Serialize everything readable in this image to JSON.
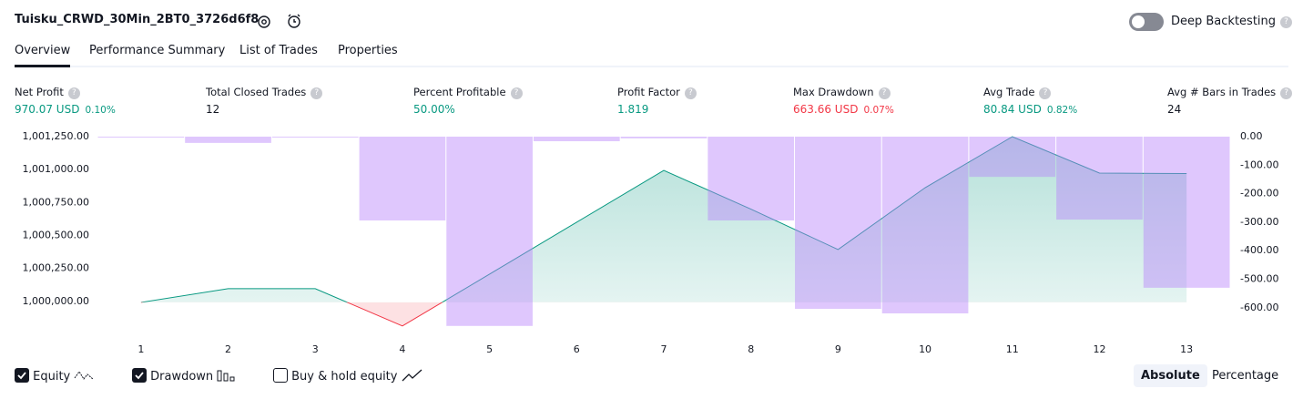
{
  "header": {
    "title": "Tuisku_CRWD_30Min_2BT0_3726d6f8",
    "deep_backtesting": "Deep Backtesting"
  },
  "tabs": [
    "Overview",
    "Performance Summary",
    "List of Trades",
    "Properties"
  ],
  "stats": [
    {
      "label": "Net Profit",
      "value": "970.07 USD",
      "percent": "0.10%",
      "color": "#089981"
    },
    {
      "label": "Total Closed Trades",
      "value": "12",
      "color": "#131722"
    },
    {
      "label": "Percent Profitable",
      "value": "50.00%",
      "color": "#089981"
    },
    {
      "label": "Profit Factor",
      "value": "1.819",
      "color": "#089981"
    },
    {
      "label": "Max Drawdown",
      "value": "663.66 USD",
      "percent": "0.07%",
      "color": "#f23645"
    },
    {
      "label": "Avg Trade",
      "value": "80.84 USD",
      "percent": "0.82%",
      "color": "#089981"
    },
    {
      "label": "Avg # Bars in Trades",
      "value": "24",
      "color": "#131722"
    }
  ],
  "chart_data": {
    "type": "combo",
    "x": [
      1,
      2,
      3,
      4,
      5,
      6,
      7,
      8,
      9,
      10,
      11,
      12,
      13
    ],
    "xlim": [
      0.5,
      13.5
    ],
    "series": [
      {
        "name": "Equity",
        "type": "area",
        "color": "#089981",
        "negative_color": "#f23645",
        "values": [
          999993,
          1000097,
          1000097,
          999814,
          1000207,
          1000601,
          1000994,
          1000700,
          1000394,
          1000863,
          1001250,
          1000974,
          1000970
        ]
      },
      {
        "name": "Drawdown",
        "type": "bar",
        "axis": "y2",
        "color": "#b983fb",
        "values": [
          0,
          -22,
          0,
          -294,
          -664,
          -16,
          -6,
          -294,
          -604,
          -620,
          -141,
          -291,
          -530
        ]
      }
    ],
    "ylim": [
      999730,
      1001250
    ],
    "yticks": [
      {
        "value": 1000000,
        "label": "1,000,000.00"
      },
      {
        "value": 1000250,
        "label": "1,000,250.00"
      },
      {
        "value": 1000500,
        "label": "1,000,500.00"
      },
      {
        "value": 1000750,
        "label": "1,000,750.00"
      },
      {
        "value": 1001000,
        "label": "1,001,000.00"
      },
      {
        "value": 1001250,
        "label": "1,001,250.00"
      }
    ],
    "y2lim": [
      -703,
      0
    ],
    "y2ticks": [
      {
        "value": 0,
        "label": "0.00"
      },
      {
        "value": -100,
        "label": "-100.00"
      },
      {
        "value": -200,
        "label": "-200.00"
      },
      {
        "value": -300,
        "label": "-300.00"
      },
      {
        "value": -400,
        "label": "-400.00"
      },
      {
        "value": -500,
        "label": "-500.00"
      },
      {
        "value": -600,
        "label": "-600.00"
      }
    ],
    "grid": false
  },
  "footer": {
    "buy_hold": "Buy & hold equity",
    "absolute": "Absolute",
    "percentage": "Percentage"
  }
}
